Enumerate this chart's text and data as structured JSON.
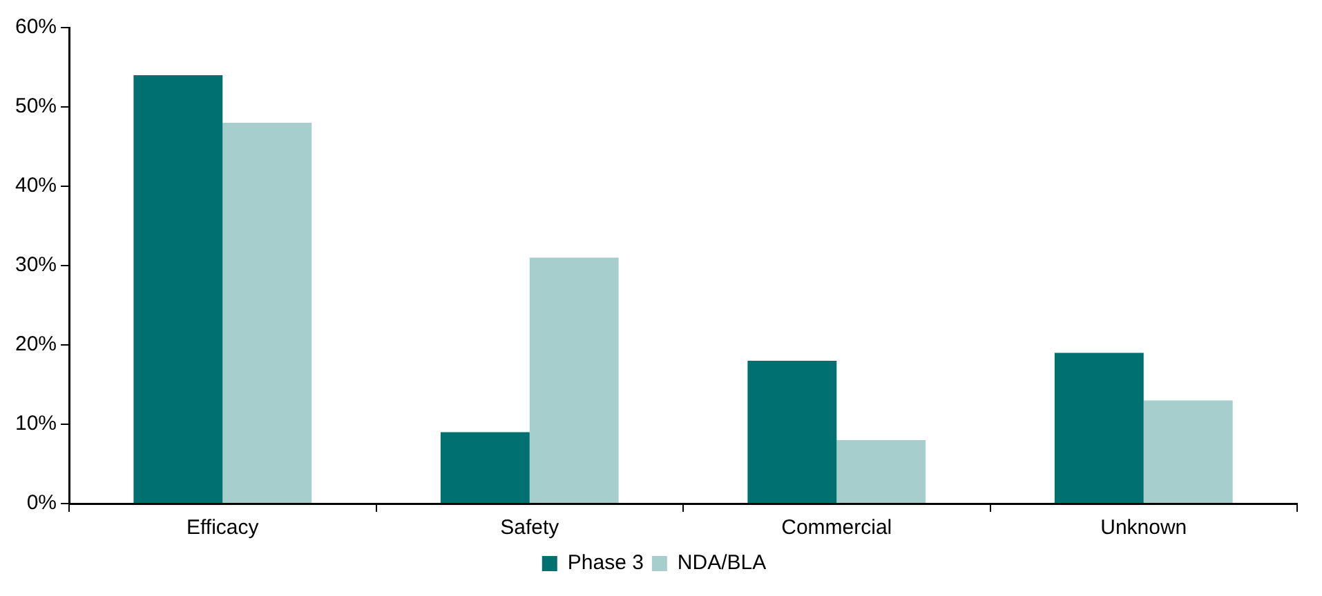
{
  "chart_data": {
    "type": "bar",
    "categories": [
      "Efficacy",
      "Safety",
      "Commercial",
      "Unknown"
    ],
    "series": [
      {
        "name": "Phase 3",
        "color": "#007070",
        "values": [
          54,
          9,
          18,
          19
        ]
      },
      {
        "name": "NDA/BLA",
        "color": "#a6cecd",
        "values": [
          48,
          31,
          8,
          13
        ]
      }
    ],
    "ylim": [
      0,
      60
    ],
    "yticks": [
      {
        "value": 0,
        "label": "0%"
      },
      {
        "value": 10,
        "label": "10%"
      },
      {
        "value": 20,
        "label": "20%"
      },
      {
        "value": 30,
        "label": "30%"
      },
      {
        "value": 40,
        "label": "40%"
      },
      {
        "value": 50,
        "label": "50%"
      },
      {
        "value": 60,
        "label": "60%"
      }
    ],
    "grid": false,
    "legend": "bottom"
  }
}
